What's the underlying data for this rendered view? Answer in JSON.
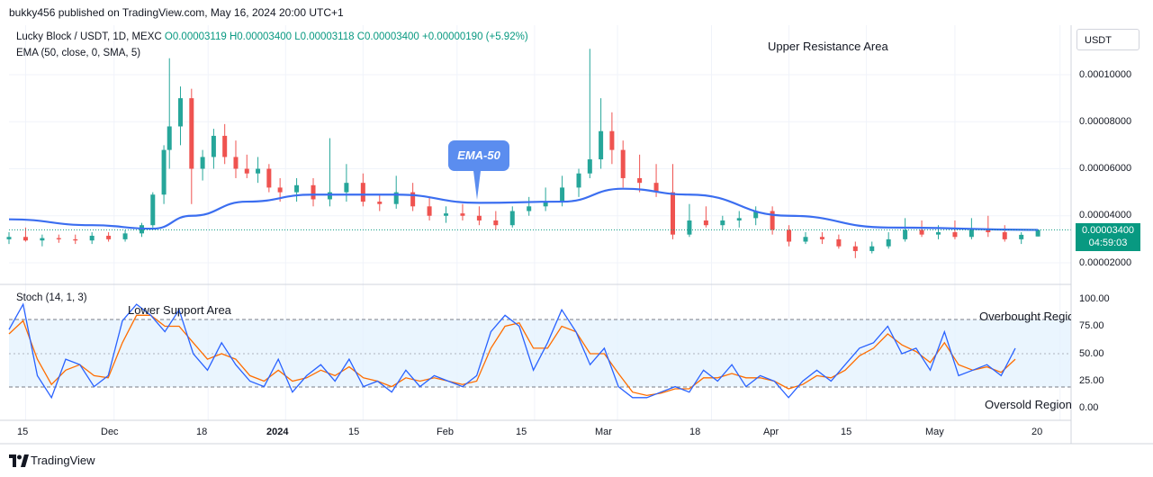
{
  "header": {
    "published": "bukky456 published on TradingView.com, May 16, 2024 20:00 UTC+1"
  },
  "legend": {
    "symbol": "Lucky Block / USDT, 1D, MEXC",
    "open": "O0.00003119",
    "high": "H0.00003400",
    "low": "L0.00003118",
    "close": "C0.00003400",
    "change": "+0.00000190 (+5.92%)",
    "ema": "EMA (50, close, 0, SMA, 5)",
    "stoch": "Stoch (14, 1, 3)"
  },
  "annotations": {
    "upper": "Upper Resistance Area",
    "lower": "Lower Support Area",
    "ema_callout": "EMA-50",
    "overbought": "Overbought Region",
    "oversold": "Oversold Region"
  },
  "price_axis": {
    "currency": "USDT",
    "ticks": [
      "0.00010000",
      "0.00008000",
      "0.00006000",
      "0.00004000",
      "0.00002000"
    ],
    "last_price": "0.00003400",
    "countdown": "04:59:03"
  },
  "stoch_axis": {
    "ticks": [
      "100.00",
      "75.00",
      "50.00",
      "25.00",
      "0.00"
    ]
  },
  "time_axis": {
    "ticks": [
      "15",
      "Dec",
      "18",
      "2024",
      "15",
      "Feb",
      "15",
      "Mar",
      "18",
      "Apr",
      "15",
      "May",
      "20"
    ]
  },
  "footer": {
    "brand": "TradingView"
  },
  "colors": {
    "up": "#26a69a",
    "down": "#ef5350",
    "ema": "#2962ff",
    "stoch_k": "#2962ff",
    "stoch_d": "#ff6d00",
    "band": "#e3f2fd"
  },
  "chart_data": [
    {
      "type": "candlestick",
      "title": "Lucky Block / USDT, 1D, MEXC",
      "y_range": [
        1.4e-05,
        0.000108
      ],
      "x_range": [
        "2023-11-12",
        "2024-05-22"
      ],
      "last_close": 3.4e-05,
      "candles": [
        {
          "date": "2023-11-12",
          "o": 3e-05,
          "h": 3.3e-05,
          "l": 2.8e-05,
          "c": 3.1e-05
        },
        {
          "date": "2023-11-15",
          "o": 3.1e-05,
          "h": 3.5e-05,
          "l": 2.9e-05,
          "c": 2.95e-05
        },
        {
          "date": "2023-11-18",
          "o": 2.95e-05,
          "h": 3.2e-05,
          "l": 2.7e-05,
          "c": 3.05e-05
        },
        {
          "date": "2023-11-21",
          "o": 3.05e-05,
          "h": 3.2e-05,
          "l": 2.85e-05,
          "c": 3e-05
        },
        {
          "date": "2023-11-24",
          "o": 3e-05,
          "h": 3.2e-05,
          "l": 2.8e-05,
          "c": 2.95e-05
        },
        {
          "date": "2023-11-27",
          "o": 2.95e-05,
          "h": 3.3e-05,
          "l": 2.8e-05,
          "c": 3.15e-05
        },
        {
          "date": "2023-11-30",
          "o": 3.15e-05,
          "h": 3.3e-05,
          "l": 2.9e-05,
          "c": 3e-05
        },
        {
          "date": "2023-12-03",
          "o": 3e-05,
          "h": 3.4e-05,
          "l": 2.9e-05,
          "c": 3.25e-05
        },
        {
          "date": "2023-12-06",
          "o": 3.25e-05,
          "h": 3.7e-05,
          "l": 3.1e-05,
          "c": 3.6e-05
        },
        {
          "date": "2023-12-08",
          "o": 3.6e-05,
          "h": 5e-05,
          "l": 3.5e-05,
          "c": 4.9e-05
        },
        {
          "date": "2023-12-10",
          "o": 4.9e-05,
          "h": 7e-05,
          "l": 4.5e-05,
          "c": 6.8e-05
        },
        {
          "date": "2023-12-11",
          "o": 6.8e-05,
          "h": 0.000107,
          "l": 6e-05,
          "c": 7.8e-05
        },
        {
          "date": "2023-12-13",
          "o": 7.8e-05,
          "h": 9.5e-05,
          "l": 7e-05,
          "c": 9e-05
        },
        {
          "date": "2023-12-15",
          "o": 9e-05,
          "h": 9.4e-05,
          "l": 4.5e-05,
          "c": 6e-05
        },
        {
          "date": "2023-12-17",
          "o": 6e-05,
          "h": 6.8e-05,
          "l": 5.5e-05,
          "c": 6.5e-05
        },
        {
          "date": "2023-12-19",
          "o": 6.5e-05,
          "h": 7.7e-05,
          "l": 6e-05,
          "c": 7.4e-05
        },
        {
          "date": "2023-12-21",
          "o": 7.4e-05,
          "h": 7.9e-05,
          "l": 6.2e-05,
          "c": 6.5e-05
        },
        {
          "date": "2023-12-23",
          "o": 6.5e-05,
          "h": 7.2e-05,
          "l": 5.6e-05,
          "c": 6e-05
        },
        {
          "date": "2023-12-25",
          "o": 6e-05,
          "h": 6.6e-05,
          "l": 5.6e-05,
          "c": 5.8e-05
        },
        {
          "date": "2023-12-27",
          "o": 5.8e-05,
          "h": 6.5e-05,
          "l": 5.4e-05,
          "c": 6e-05
        },
        {
          "date": "2023-12-29",
          "o": 6e-05,
          "h": 6.2e-05,
          "l": 5e-05,
          "c": 5.2e-05
        },
        {
          "date": "2023-12-31",
          "o": 5.2e-05,
          "h": 5.6e-05,
          "l": 4.6e-05,
          "c": 5e-05
        },
        {
          "date": "2024-01-03",
          "o": 5e-05,
          "h": 5.6e-05,
          "l": 4.6e-05,
          "c": 5.3e-05
        },
        {
          "date": "2024-01-06",
          "o": 5.3e-05,
          "h": 5.6e-05,
          "l": 4.4e-05,
          "c": 4.7e-05
        },
        {
          "date": "2024-01-09",
          "o": 4.7e-05,
          "h": 7.3e-05,
          "l": 4.4e-05,
          "c": 5e-05
        },
        {
          "date": "2024-01-12",
          "o": 5e-05,
          "h": 6.2e-05,
          "l": 4.6e-05,
          "c": 5.4e-05
        },
        {
          "date": "2024-01-15",
          "o": 5.4e-05,
          "h": 5.8e-05,
          "l": 4.4e-05,
          "c": 4.6e-05
        },
        {
          "date": "2024-01-18",
          "o": 4.6e-05,
          "h": 4.9e-05,
          "l": 4.2e-05,
          "c": 4.5e-05
        },
        {
          "date": "2024-01-21",
          "o": 4.5e-05,
          "h": 5.7e-05,
          "l": 4.3e-05,
          "c": 5e-05
        },
        {
          "date": "2024-01-24",
          "o": 5e-05,
          "h": 5.4e-05,
          "l": 4.2e-05,
          "c": 4.4e-05
        },
        {
          "date": "2024-01-27",
          "o": 4.4e-05,
          "h": 4.8e-05,
          "l": 3.8e-05,
          "c": 4e-05
        },
        {
          "date": "2024-01-30",
          "o": 4e-05,
          "h": 4.4e-05,
          "l": 3.7e-05,
          "c": 4.1e-05
        },
        {
          "date": "2024-02-02",
          "o": 4.1e-05,
          "h": 4.5e-05,
          "l": 3.8e-05,
          "c": 4e-05
        },
        {
          "date": "2024-02-05",
          "o": 4e-05,
          "h": 4.4e-05,
          "l": 3.6e-05,
          "c": 3.8e-05
        },
        {
          "date": "2024-02-08",
          "o": 3.8e-05,
          "h": 4.2e-05,
          "l": 3.4e-05,
          "c": 3.6e-05
        },
        {
          "date": "2024-02-11",
          "o": 3.6e-05,
          "h": 4.4e-05,
          "l": 3.5e-05,
          "c": 4.2e-05
        },
        {
          "date": "2024-02-14",
          "o": 4.2e-05,
          "h": 4.8e-05,
          "l": 4e-05,
          "c": 4.4e-05
        },
        {
          "date": "2024-02-17",
          "o": 4.4e-05,
          "h": 5.2e-05,
          "l": 4.2e-05,
          "c": 4.6e-05
        },
        {
          "date": "2024-02-20",
          "o": 4.6e-05,
          "h": 5.7e-05,
          "l": 4.4e-05,
          "c": 5.2e-05
        },
        {
          "date": "2024-02-23",
          "o": 5.2e-05,
          "h": 6e-05,
          "l": 4.8e-05,
          "c": 5.8e-05
        },
        {
          "date": "2024-02-25",
          "o": 5.8e-05,
          "h": 0.000111,
          "l": 5.6e-05,
          "c": 6.4e-05
        },
        {
          "date": "2024-02-27",
          "o": 6.4e-05,
          "h": 9e-05,
          "l": 6e-05,
          "c": 7.6e-05
        },
        {
          "date": "2024-02-29",
          "o": 7.6e-05,
          "h": 8.4e-05,
          "l": 6.2e-05,
          "c": 6.8e-05
        },
        {
          "date": "2024-03-02",
          "o": 6.8e-05,
          "h": 7.2e-05,
          "l": 5.2e-05,
          "c": 5.6e-05
        },
        {
          "date": "2024-03-05",
          "o": 5.6e-05,
          "h": 6.6e-05,
          "l": 5e-05,
          "c": 5.4e-05
        },
        {
          "date": "2024-03-08",
          "o": 5.4e-05,
          "h": 6.2e-05,
          "l": 4.8e-05,
          "c": 5e-05
        },
        {
          "date": "2024-03-11",
          "o": 5e-05,
          "h": 6.2e-05,
          "l": 3e-05,
          "c": 3.2e-05
        },
        {
          "date": "2024-03-14",
          "o": 3.2e-05,
          "h": 4.5e-05,
          "l": 3.1e-05,
          "c": 3.8e-05
        },
        {
          "date": "2024-03-17",
          "o": 3.8e-05,
          "h": 4.4e-05,
          "l": 3.5e-05,
          "c": 3.6e-05
        },
        {
          "date": "2024-03-20",
          "o": 3.6e-05,
          "h": 4e-05,
          "l": 3.4e-05,
          "c": 3.8e-05
        },
        {
          "date": "2024-03-23",
          "o": 3.8e-05,
          "h": 4.2e-05,
          "l": 3.5e-05,
          "c": 3.9e-05
        },
        {
          "date": "2024-03-26",
          "o": 3.9e-05,
          "h": 4.4e-05,
          "l": 3.6e-05,
          "c": 4.2e-05
        },
        {
          "date": "2024-03-29",
          "o": 4.2e-05,
          "h": 4.4e-05,
          "l": 3.2e-05,
          "c": 3.4e-05
        },
        {
          "date": "2024-04-01",
          "o": 3.4e-05,
          "h": 3.6e-05,
          "l": 2.7e-05,
          "c": 2.9e-05
        },
        {
          "date": "2024-04-04",
          "o": 2.9e-05,
          "h": 3.3e-05,
          "l": 2.8e-05,
          "c": 3.1e-05
        },
        {
          "date": "2024-04-07",
          "o": 3.1e-05,
          "h": 3.3e-05,
          "l": 2.8e-05,
          "c": 3e-05
        },
        {
          "date": "2024-04-10",
          "o": 3e-05,
          "h": 3.2e-05,
          "l": 2.6e-05,
          "c": 2.7e-05
        },
        {
          "date": "2024-04-13",
          "o": 2.7e-05,
          "h": 2.9e-05,
          "l": 2.2e-05,
          "c": 2.5e-05
        },
        {
          "date": "2024-04-16",
          "o": 2.5e-05,
          "h": 2.9e-05,
          "l": 2.4e-05,
          "c": 2.7e-05
        },
        {
          "date": "2024-04-19",
          "o": 2.7e-05,
          "h": 3.3e-05,
          "l": 2.6e-05,
          "c": 3e-05
        },
        {
          "date": "2024-04-22",
          "o": 3e-05,
          "h": 3.9e-05,
          "l": 2.9e-05,
          "c": 3.4e-05
        },
        {
          "date": "2024-04-25",
          "o": 3.4e-05,
          "h": 3.8e-05,
          "l": 3.1e-05,
          "c": 3.2e-05
        },
        {
          "date": "2024-04-28",
          "o": 3.2e-05,
          "h": 3.6e-05,
          "l": 3e-05,
          "c": 3.3e-05
        },
        {
          "date": "2024-05-01",
          "o": 3.3e-05,
          "h": 3.8e-05,
          "l": 3e-05,
          "c": 3.1e-05
        },
        {
          "date": "2024-05-04",
          "o": 3.1e-05,
          "h": 3.9e-05,
          "l": 3e-05,
          "c": 3.4e-05
        },
        {
          "date": "2024-05-07",
          "o": 3.4e-05,
          "h": 4e-05,
          "l": 3.1e-05,
          "c": 3.3e-05
        },
        {
          "date": "2024-05-10",
          "o": 3.3e-05,
          "h": 3.6e-05,
          "l": 2.9e-05,
          "c": 3e-05
        },
        {
          "date": "2024-05-13",
          "o": 3e-05,
          "h": 3.3e-05,
          "l": 2.8e-05,
          "c": 3.19e-05
        },
        {
          "date": "2024-05-16",
          "o": 3.12e-05,
          "h": 3.4e-05,
          "l": 3.12e-05,
          "c": 3.4e-05
        }
      ],
      "ema50": [
        {
          "date": "2023-11-12",
          "v": 3.85e-05
        },
        {
          "date": "2023-11-27",
          "v": 3.6e-05
        },
        {
          "date": "2023-12-08",
          "v": 3.45e-05
        },
        {
          "date": "2023-12-15",
          "v": 4e-05
        },
        {
          "date": "2023-12-25",
          "v": 4.6e-05
        },
        {
          "date": "2024-01-06",
          "v": 4.9e-05
        },
        {
          "date": "2024-01-21",
          "v": 4.9e-05
        },
        {
          "date": "2024-02-05",
          "v": 4.55e-05
        },
        {
          "date": "2024-02-20",
          "v": 4.6e-05
        },
        {
          "date": "2024-03-02",
          "v": 5.15e-05
        },
        {
          "date": "2024-03-14",
          "v": 4.9e-05
        },
        {
          "date": "2024-04-01",
          "v": 4e-05
        },
        {
          "date": "2024-04-19",
          "v": 3.5e-05
        },
        {
          "date": "2024-05-16",
          "v": 3.4e-05
        }
      ]
    },
    {
      "type": "line",
      "title": "Stoch (14, 1, 3)",
      "ylim": [
        0,
        100
      ],
      "bands": {
        "upper": 80,
        "middle": 50,
        "lower": 20
      },
      "series": [
        {
          "name": "K",
          "color": "#2962ff",
          "values": [
            72,
            95,
            30,
            10,
            45,
            40,
            20,
            30,
            80,
            95,
            85,
            70,
            90,
            50,
            35,
            60,
            40,
            25,
            20,
            45,
            15,
            30,
            40,
            25,
            45,
            20,
            25,
            15,
            35,
            20,
            30,
            25,
            20,
            30,
            70,
            85,
            75,
            35,
            60,
            90,
            70,
            40,
            55,
            20,
            10,
            10,
            15,
            20,
            15,
            35,
            25,
            40,
            20,
            30,
            25,
            10,
            25,
            35,
            25,
            40,
            55,
            60,
            75,
            50,
            55,
            35,
            70,
            30,
            35,
            40,
            30,
            55
          ]
        },
        {
          "name": "D",
          "color": "#ff6d00",
          "values": [
            68,
            80,
            45,
            22,
            35,
            40,
            30,
            28,
            60,
            85,
            85,
            75,
            75,
            60,
            45,
            50,
            45,
            30,
            25,
            35,
            25,
            28,
            35,
            30,
            38,
            28,
            25,
            20,
            28,
            25,
            28,
            25,
            22,
            25,
            55,
            75,
            78,
            55,
            55,
            75,
            70,
            50,
            50,
            32,
            15,
            12,
            14,
            18,
            18,
            28,
            28,
            32,
            28,
            28,
            25,
            18,
            22,
            30,
            28,
            35,
            48,
            55,
            68,
            58,
            52,
            42,
            60,
            40,
            35,
            38,
            33,
            45
          ]
        }
      ]
    }
  ]
}
